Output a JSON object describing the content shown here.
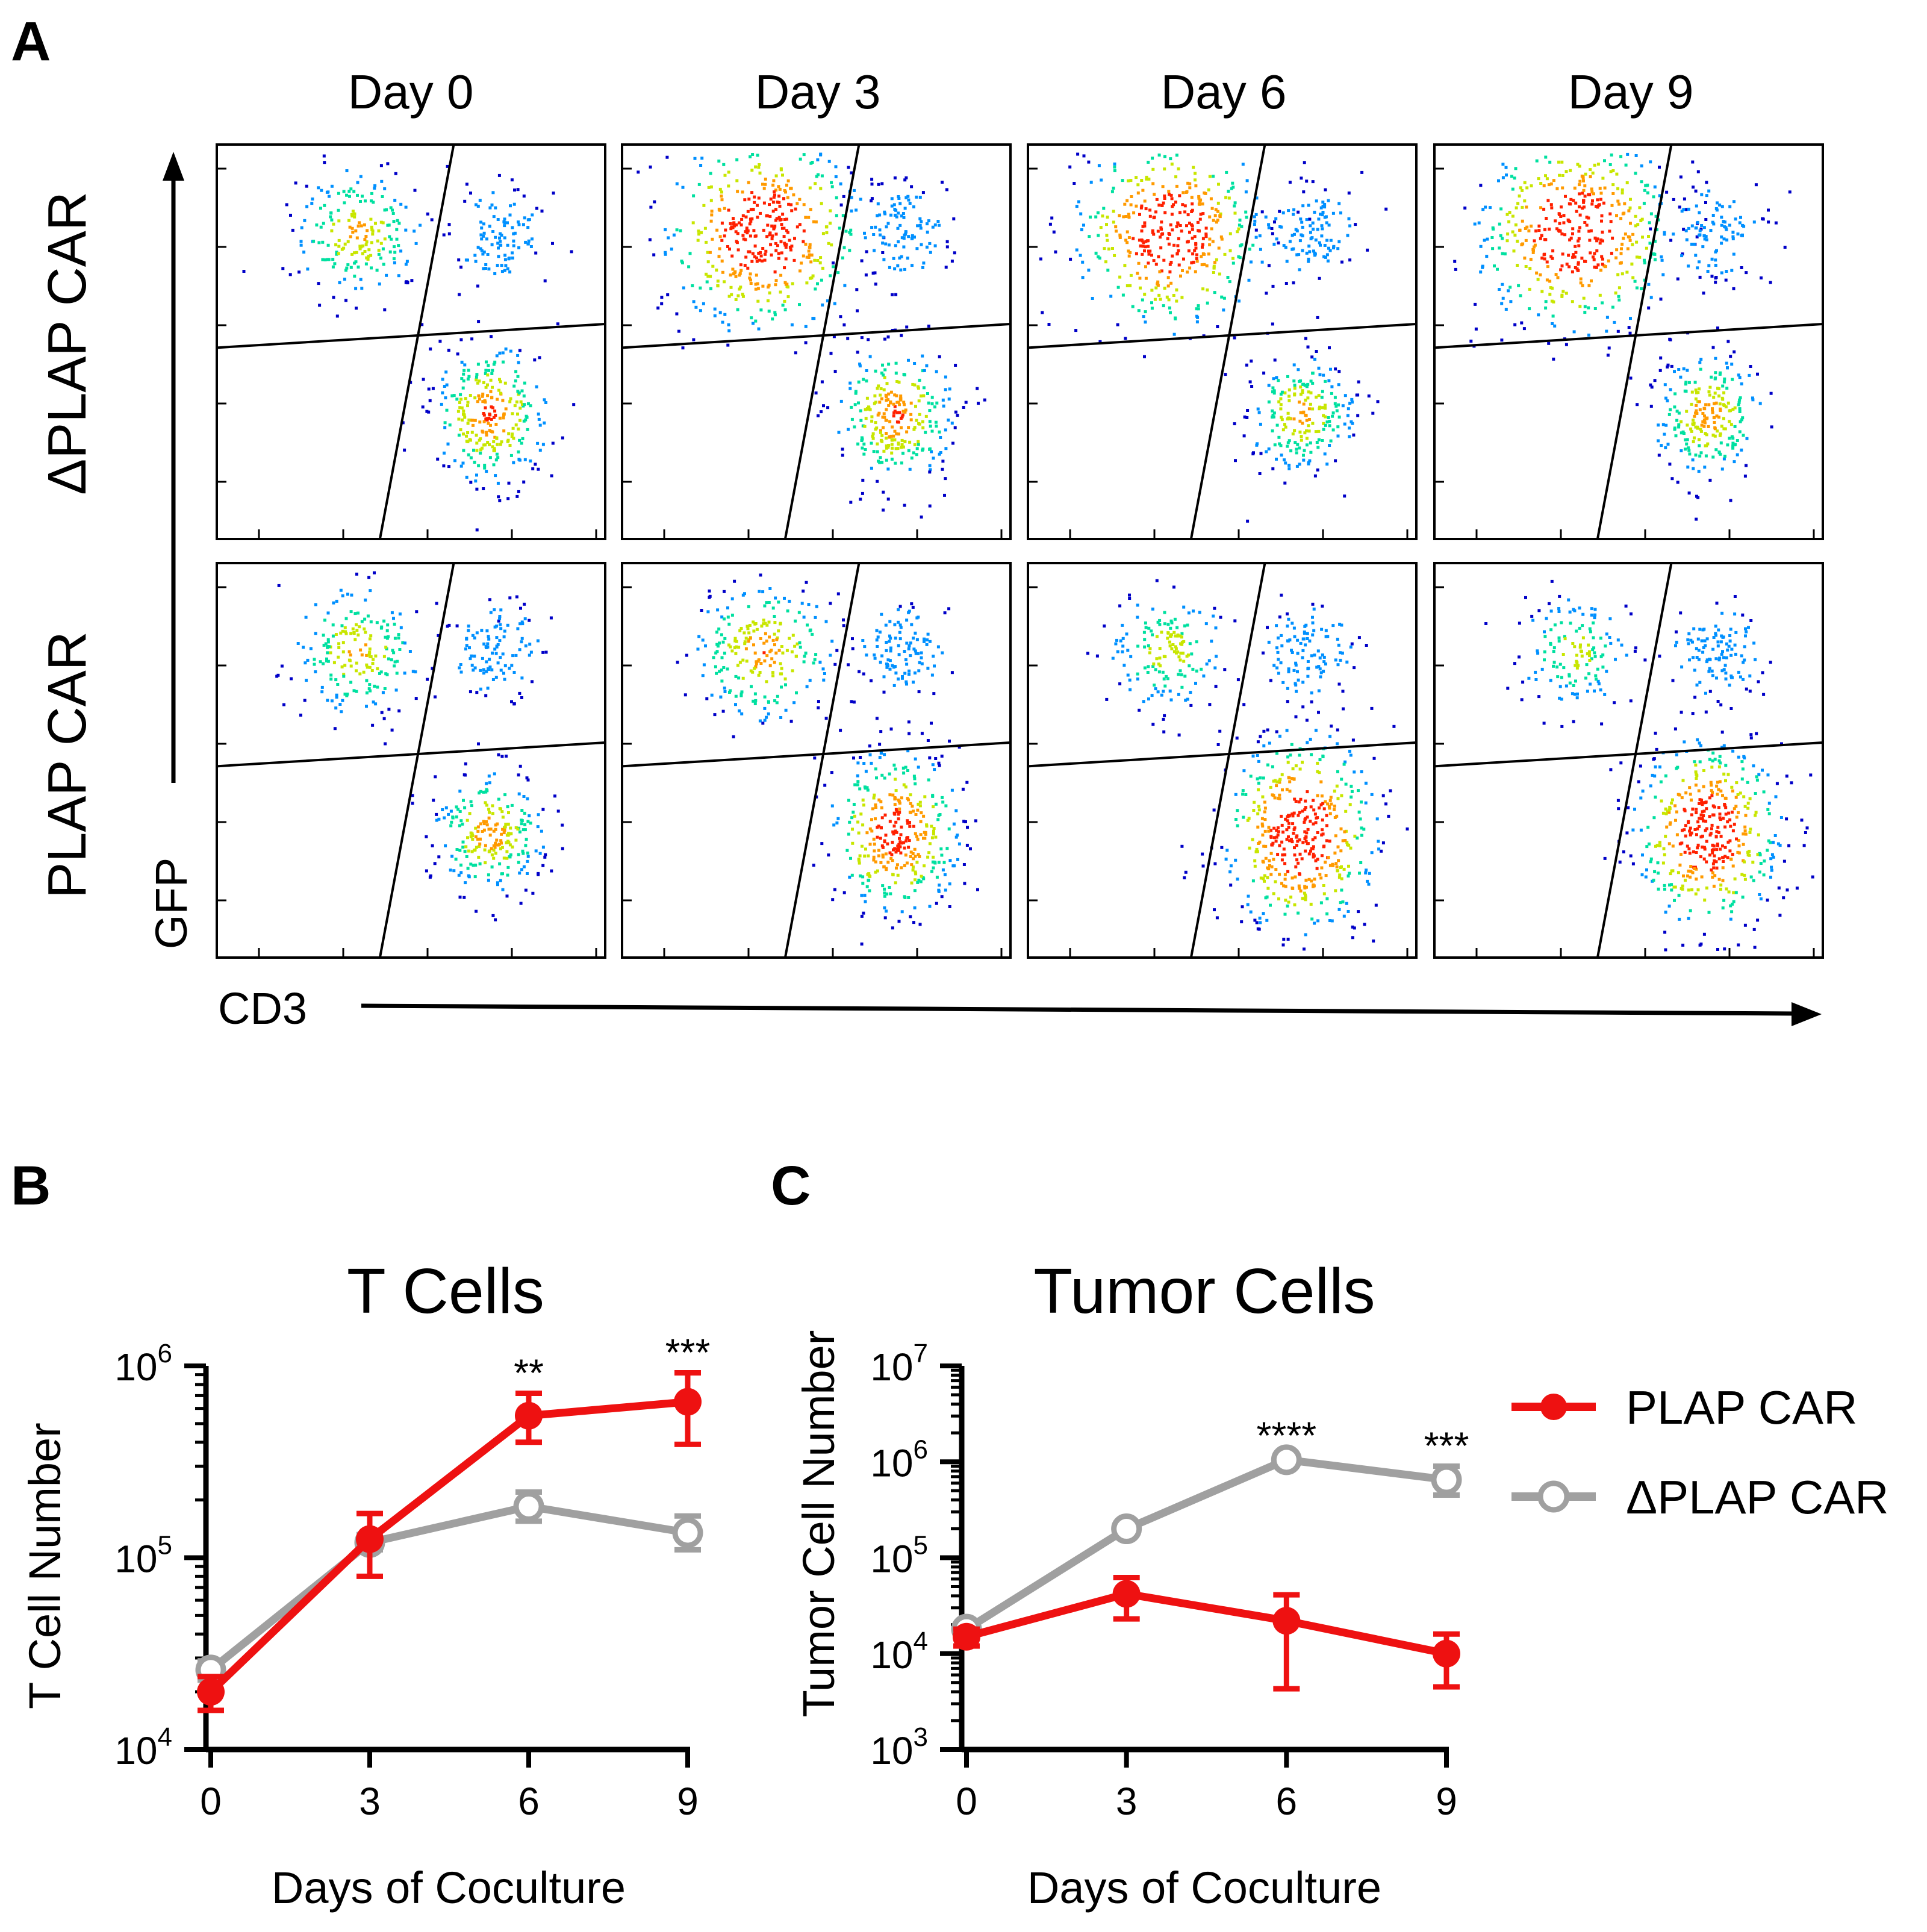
{
  "panel_A": {
    "letter": "A",
    "columns": [
      "Day 0",
      "Day 3",
      "Day 6",
      "Day 9"
    ],
    "rows": [
      "ΔPLAP CAR",
      "PLAP CAR"
    ],
    "y_axis_label": "GFP",
    "x_axis_label": "CD3",
    "populations": {
      "dPLAP": [
        {
          "top": 0.35,
          "bottom": 0.55
        },
        {
          "top": 1.0,
          "bottom": 0.55
        },
        {
          "top": 0.95,
          "bottom": 0.4
        },
        {
          "top": 1.0,
          "bottom": 0.45
        }
      ],
      "PLAP": [
        {
          "top": 0.35,
          "bottom": 0.45
        },
        {
          "top": 0.45,
          "bottom": 0.75
        },
        {
          "top": 0.25,
          "bottom": 1.0
        },
        {
          "top": 0.2,
          "bottom": 0.95
        }
      ]
    },
    "density_colors": [
      "#0000c8",
      "#0090ff",
      "#00e0a0",
      "#c8e600",
      "#ff9a00",
      "#ff2000"
    ]
  },
  "chart_data": [
    {
      "panel": "B",
      "type": "line",
      "title": "T Cells",
      "xlabel": "Days of Coculture",
      "ylabel": "T Cell Number",
      "yscale": "log",
      "ylim": [
        10000,
        1000000
      ],
      "x": [
        0,
        3,
        6,
        9
      ],
      "xticks": [
        "0",
        "3",
        "6",
        "9"
      ],
      "yticks": [
        {
          "base": "10",
          "exp": "4",
          "value": 10000
        },
        {
          "base": "10",
          "exp": "5",
          "value": 100000
        },
        {
          "base": "10",
          "exp": "6",
          "value": 1000000
        }
      ],
      "series": [
        {
          "name": "ΔPLAP CAR",
          "color": "#a0a0a0",
          "marker": "open-circle",
          "values": [
            26000,
            120000,
            185000,
            135000
          ],
          "err_low": [
            23000,
            110000,
            155000,
            110000
          ],
          "err_high": [
            29000,
            132000,
            220000,
            165000
          ]
        },
        {
          "name": "PLAP CAR",
          "color": "#ee1111",
          "marker": "filled-circle",
          "values": [
            20000,
            125000,
            550000,
            650000
          ],
          "err_low": [
            16000,
            80000,
            400000,
            390000
          ],
          "err_high": [
            24000,
            170000,
            720000,
            920000
          ]
        }
      ],
      "annotations": [
        {
          "x": 6,
          "text": "**"
        },
        {
          "x": 9,
          "text": "***"
        }
      ]
    },
    {
      "panel": "C",
      "type": "line",
      "title": "Tumor Cells",
      "xlabel": "Days of Coculture",
      "ylabel": "Tumor Cell Number",
      "yscale": "log",
      "ylim": [
        1000,
        10000000
      ],
      "x": [
        0,
        3,
        6,
        9
      ],
      "xticks": [
        "0",
        "3",
        "6",
        "9"
      ],
      "yticks": [
        {
          "base": "10",
          "exp": "3",
          "value": 1000
        },
        {
          "base": "10",
          "exp": "4",
          "value": 10000
        },
        {
          "base": "10",
          "exp": "5",
          "value": 100000
        },
        {
          "base": "10",
          "exp": "6",
          "value": 1000000
        },
        {
          "base": "10",
          "exp": "7",
          "value": 10000000
        }
      ],
      "series": [
        {
          "name": "ΔPLAP CAR",
          "color": "#a0a0a0",
          "marker": "open-circle",
          "values": [
            18000,
            200000,
            1050000,
            650000
          ],
          "err_low": [
            16000,
            185000,
            950000,
            450000
          ],
          "err_high": [
            20000,
            215000,
            1150000,
            900000
          ]
        },
        {
          "name": "PLAP CAR",
          "color": "#ee1111",
          "marker": "filled-circle",
          "values": [
            15000,
            42000,
            22000,
            10000
          ],
          "err_low": [
            12000,
            23000,
            4300,
            4500
          ],
          "err_high": [
            18000,
            62000,
            41000,
            16000
          ]
        }
      ],
      "annotations": [
        {
          "x": 6,
          "text": "****"
        },
        {
          "x": 9,
          "text": "***"
        }
      ]
    }
  ],
  "legend": [
    {
      "label": "PLAP CAR",
      "color": "#ee1111",
      "marker": "filled-circle"
    },
    {
      "label": "ΔPLAP CAR",
      "color": "#a0a0a0",
      "marker": "open-circle"
    }
  ]
}
